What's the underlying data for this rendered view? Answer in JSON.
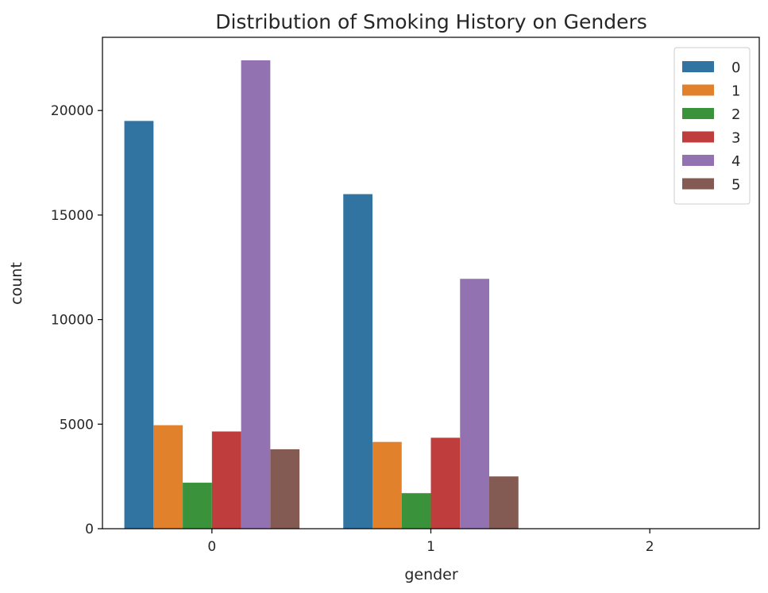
{
  "chart_data": {
    "type": "bar",
    "title": "Distribution of Smoking History on Genders",
    "xlabel": "gender",
    "ylabel": "count",
    "categories": [
      "0",
      "1",
      "2"
    ],
    "ylim": [
      0,
      23500
    ],
    "yticks": [
      0,
      5000,
      10000,
      15000,
      20000
    ],
    "legend_position": "top-right",
    "series": [
      {
        "name": "0",
        "color": "#3274a1",
        "values": [
          19500,
          16000,
          0
        ]
      },
      {
        "name": "1",
        "color": "#e1812c",
        "values": [
          4950,
          4150,
          0
        ]
      },
      {
        "name": "2",
        "color": "#3a923a",
        "values": [
          2200,
          1700,
          0
        ]
      },
      {
        "name": "3",
        "color": "#c03d3e",
        "values": [
          4650,
          4350,
          0
        ]
      },
      {
        "name": "4",
        "color": "#9372b2",
        "values": [
          22400,
          11950,
          0
        ]
      },
      {
        "name": "5",
        "color": "#845b53",
        "values": [
          3800,
          2500,
          0
        ]
      }
    ]
  }
}
